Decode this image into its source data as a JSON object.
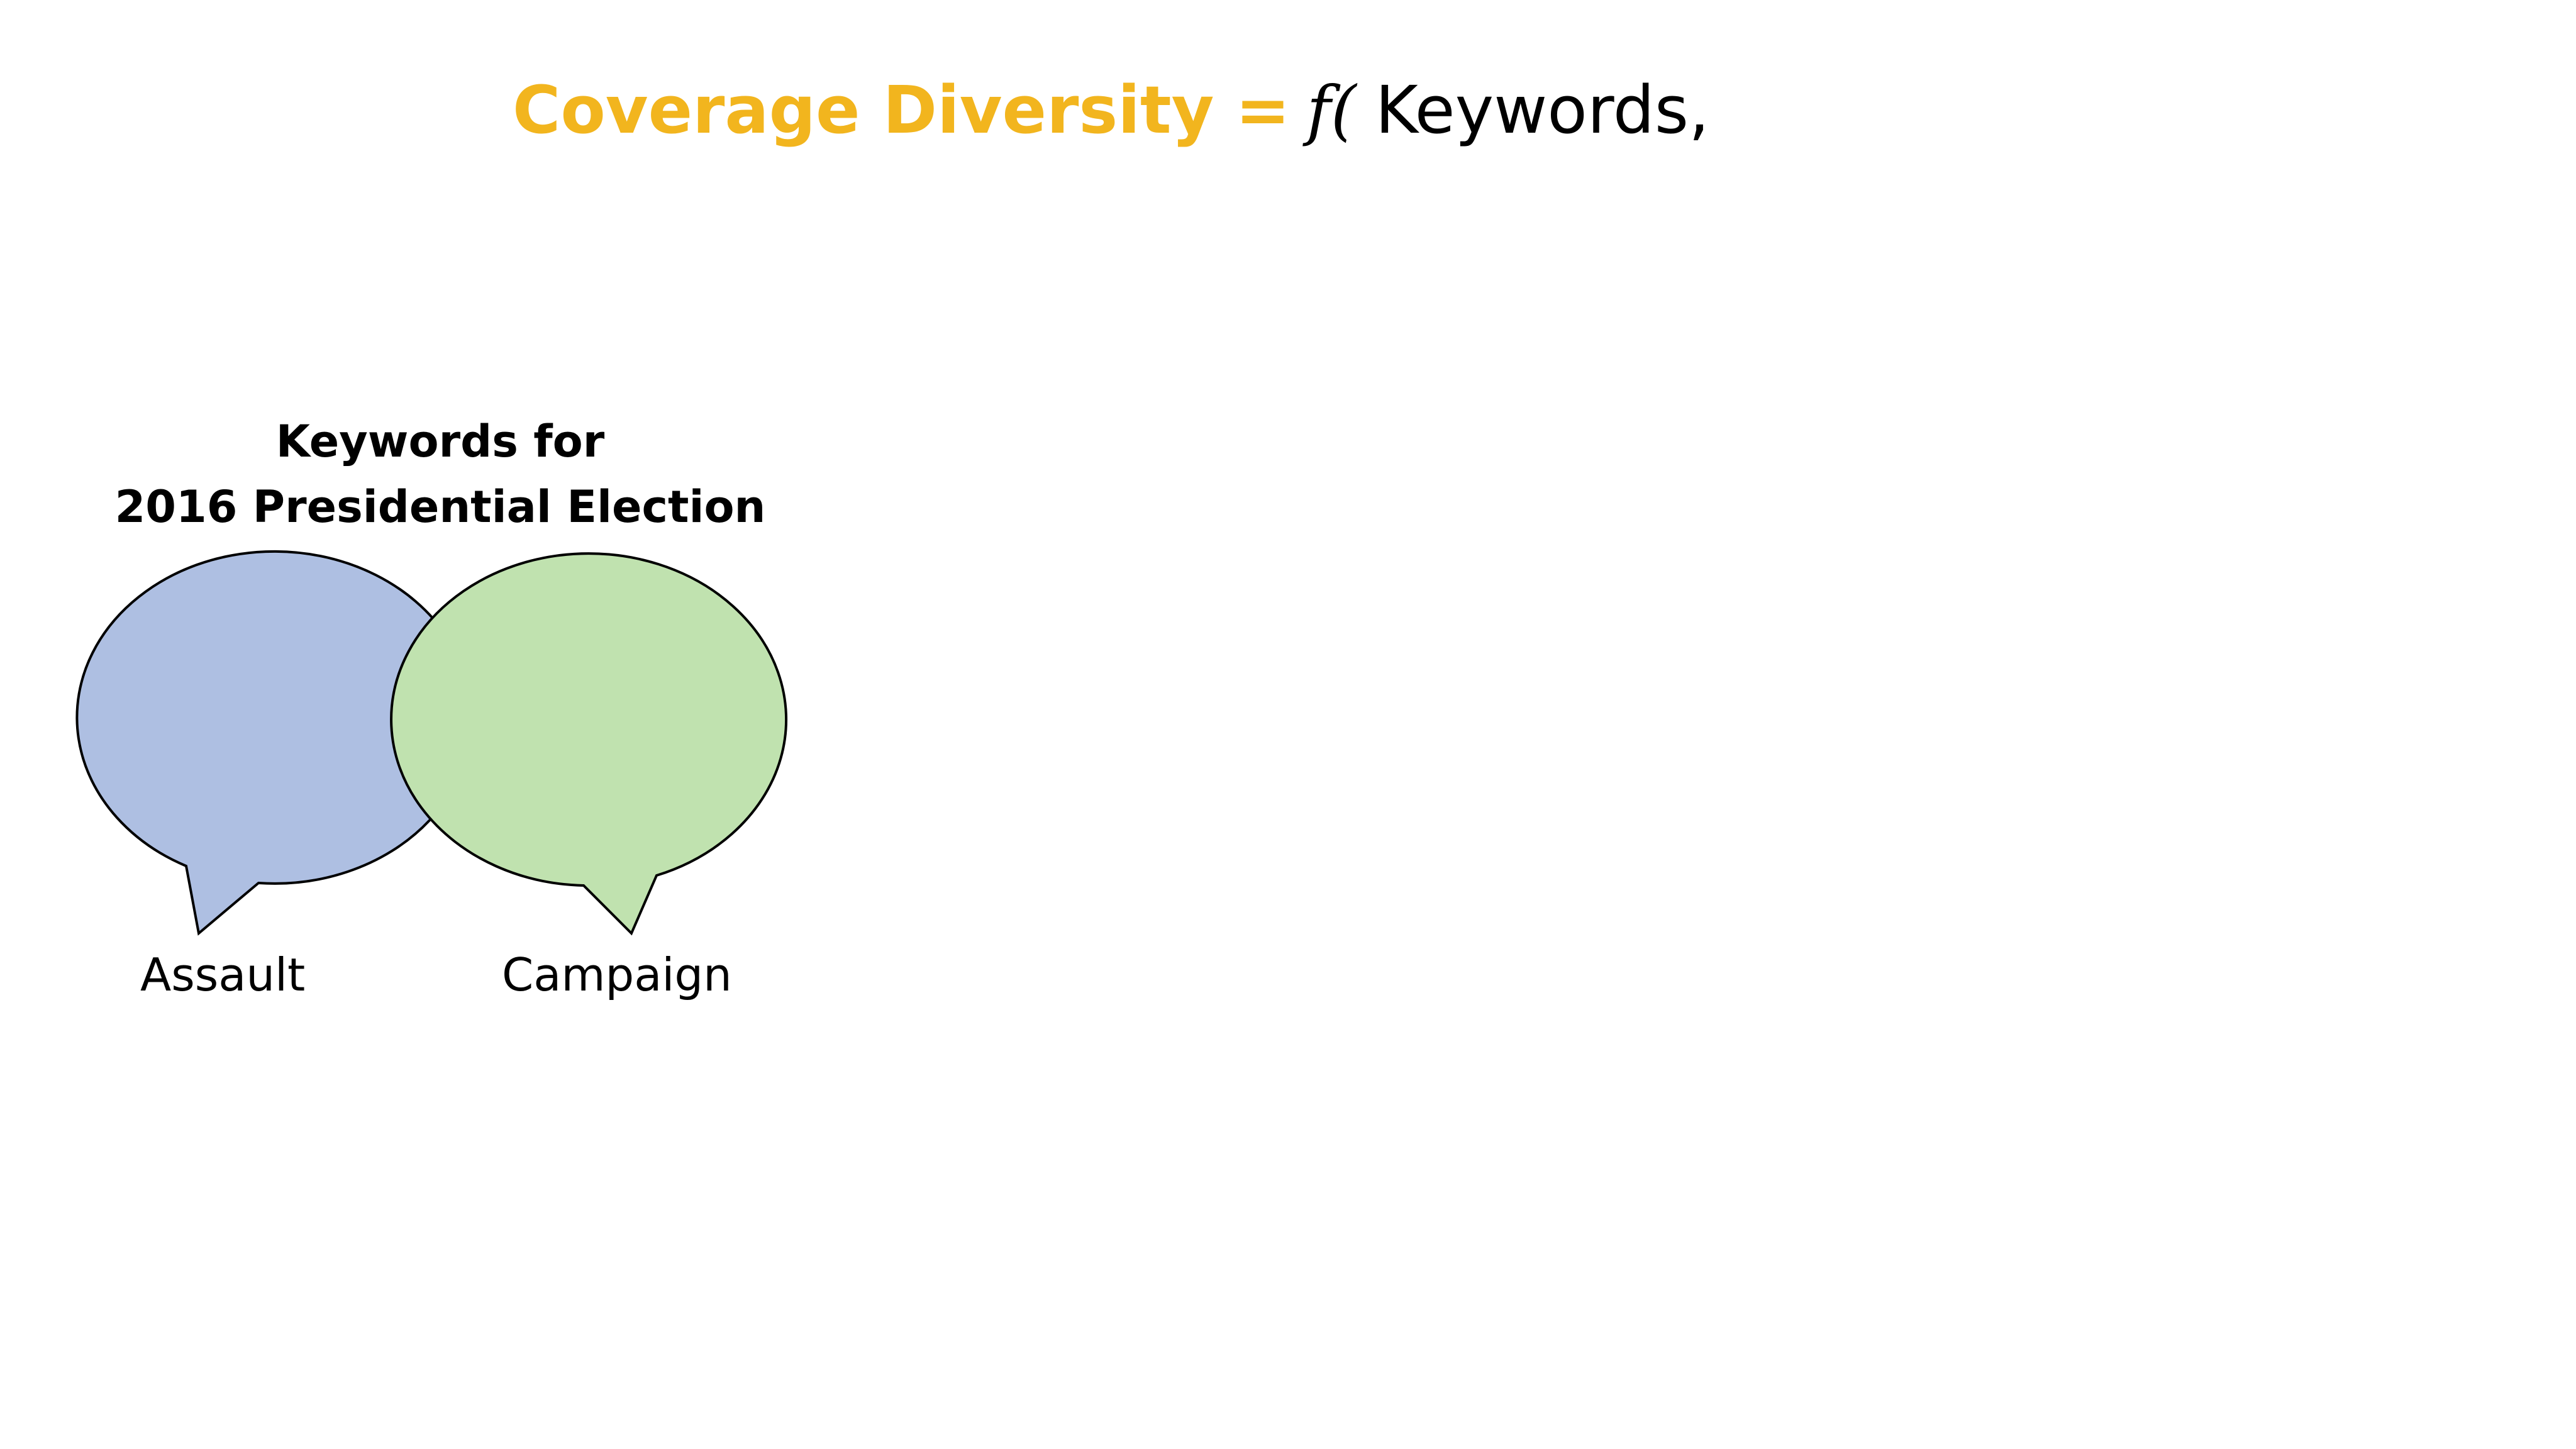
{
  "formula": {
    "term": "Coverage Diversity",
    "equals": "=",
    "function": "f(",
    "argument": "Keywords,"
  },
  "diagram": {
    "title_line1": "Keywords for",
    "title_line2": "2016 Presidential Election",
    "bubbles": [
      {
        "label": "Assault",
        "color": "#AEBFE2"
      },
      {
        "label": "Campaign",
        "color": "#C0E2AF"
      }
    ],
    "outline_color": "#000000"
  },
  "colors": {
    "accent": "#F2B51E",
    "text": "#000000",
    "background": "#FFFFFF"
  }
}
